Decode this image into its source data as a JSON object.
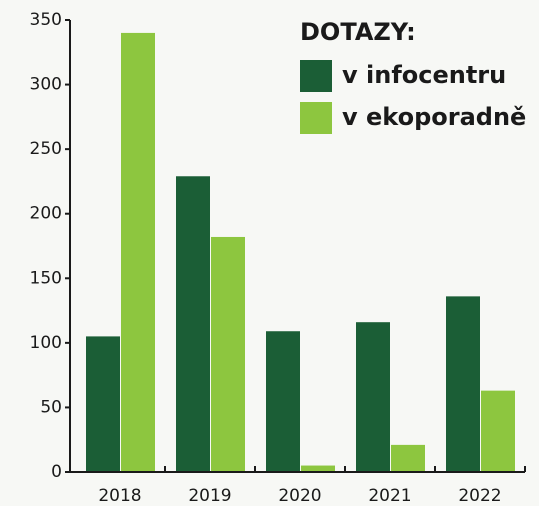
{
  "chart_data": {
    "type": "bar",
    "legend_title": "DOTAZY:",
    "categories": [
      "2018",
      "2019",
      "2020",
      "2021",
      "2022"
    ],
    "series": [
      {
        "name": "v infocentru",
        "color": "#1b5e36",
        "values": [
          105,
          229,
          109,
          116,
          136
        ]
      },
      {
        "name": "v ekoporadně",
        "color": "#8dc63f",
        "values": [
          340,
          182,
          5,
          21,
          63
        ]
      }
    ],
    "ylim": [
      0,
      350
    ],
    "yticks": [
      0,
      50,
      100,
      150,
      200,
      250,
      300,
      350
    ],
    "legend": "top-right"
  }
}
